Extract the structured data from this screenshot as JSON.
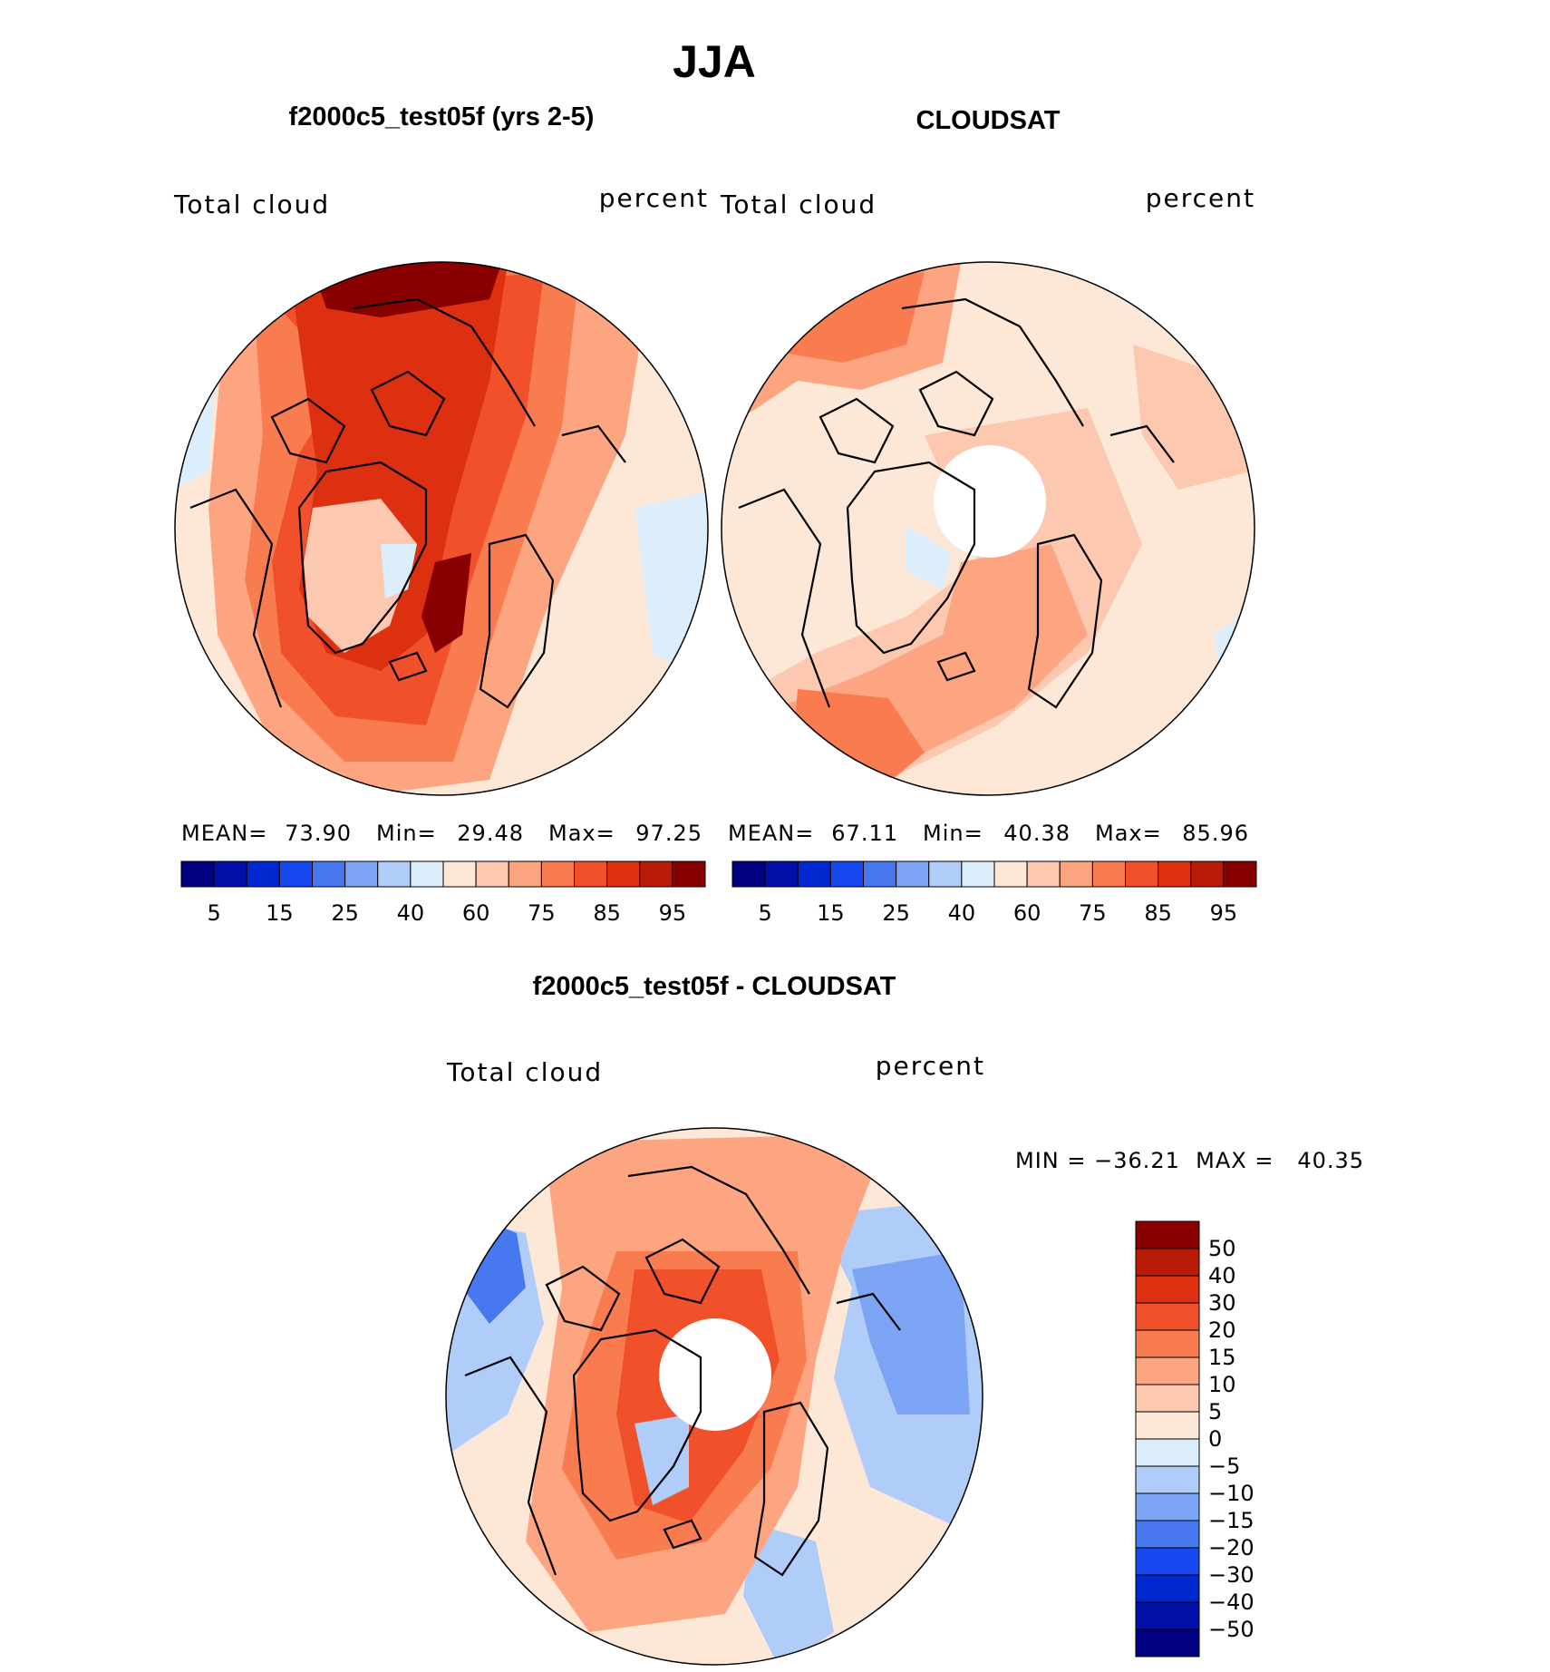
{
  "title": "JJA",
  "panels": [
    {
      "title": "f2000c5_test05f (yrs 2-5)",
      "left_label": "Total cloud",
      "right_label": "percent",
      "stats": {
        "mean_label": "MEAN=",
        "mean": "73.90",
        "min_label": "Min=",
        "min": "29.48",
        "max_label": "Max=",
        "max": "97.25"
      }
    },
    {
      "title": "CLOUDSAT",
      "left_label": "Total cloud",
      "right_label": "percent",
      "stats": {
        "mean_label": "MEAN=",
        "mean": "67.11",
        "min_label": "Min=",
        "min": "40.38",
        "max_label": "Max=",
        "max": "85.96"
      }
    },
    {
      "title": "f2000c5_test05f - CLOUDSAT",
      "left_label": "Total cloud",
      "right_label": "percent",
      "minmax": "MIN = −36.21  MAX =   40.35"
    }
  ],
  "colorbar_abs": {
    "colors": [
      "#000080",
      "#0010a8",
      "#0028d0",
      "#1848f0",
      "#4878f0",
      "#7ca4f4",
      "#b0ccf8",
      "#dceefc",
      "#fde8d8",
      "#fcc8b0",
      "#fca580",
      "#f87c50",
      "#f0502a",
      "#dc3010",
      "#b81c08",
      "#880000"
    ],
    "tick_labels": [
      "5",
      "15",
      "25",
      "40",
      "60",
      "75",
      "85",
      "95"
    ]
  },
  "colorbar_diff": {
    "colors": [
      "#000080",
      "#0010a8",
      "#0028d0",
      "#1848f0",
      "#4878f0",
      "#7ca4f4",
      "#b0ccf8",
      "#dceefc",
      "#fde8d8",
      "#fcc8b0",
      "#fca580",
      "#f87c50",
      "#f0502a",
      "#dc3010",
      "#b81c08",
      "#880000"
    ],
    "tick_labels": [
      "50",
      "40",
      "30",
      "20",
      "15",
      "10",
      "5",
      "0",
      "−5",
      "−10",
      "−15",
      "−20",
      "−30",
      "−40",
      "−50"
    ]
  },
  "chart_data": [
    {
      "type": "heatmap",
      "projection": "polar stereographic (north)",
      "title": "f2000c5_test05f (yrs 2-5)",
      "variable": "Total cloud",
      "units": "percent",
      "levels": [
        5,
        10,
        15,
        20,
        25,
        30,
        40,
        50,
        60,
        70,
        75,
        80,
        85,
        90,
        95
      ],
      "mean": 73.9,
      "min": 29.48,
      "max": 97.25
    },
    {
      "type": "heatmap",
      "projection": "polar stereographic (north)",
      "title": "CLOUDSAT",
      "variable": "Total cloud",
      "units": "percent",
      "levels": [
        5,
        10,
        15,
        20,
        25,
        30,
        40,
        50,
        60,
        70,
        75,
        80,
        85,
        90,
        95
      ],
      "mean": 67.11,
      "min": 40.38,
      "max": 85.96
    },
    {
      "type": "heatmap",
      "projection": "polar stereographic (north)",
      "title": "f2000c5_test05f - CLOUDSAT",
      "variable": "Total cloud",
      "units": "percent",
      "levels": [
        -50,
        -40,
        -30,
        -20,
        -15,
        -10,
        -5,
        0,
        5,
        10,
        15,
        20,
        30,
        40,
        50
      ],
      "min": -36.21,
      "max": 40.35
    }
  ]
}
